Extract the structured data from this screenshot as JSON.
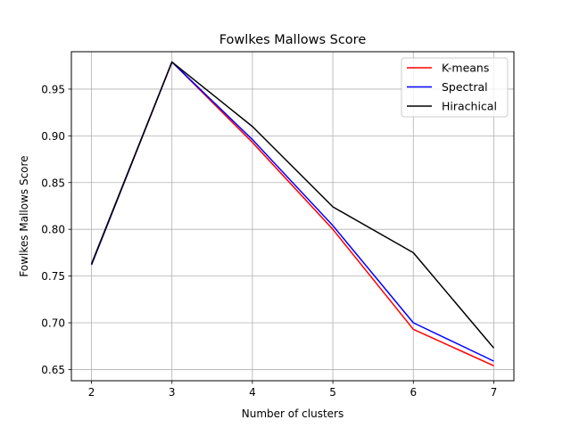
{
  "chart_data": {
    "type": "line",
    "title": "Fowlkes Mallows Score",
    "xlabel": "Number of clusters",
    "ylabel": "Fowlkes Mallows Score",
    "x": [
      2,
      3,
      4,
      5,
      6,
      7
    ],
    "xlim": [
      1.75,
      7.25
    ],
    "ylim": [
      0.638,
      0.99
    ],
    "xticks": [
      2,
      3,
      4,
      5,
      6,
      7
    ],
    "yticks": [
      0.65,
      0.7,
      0.75,
      0.8,
      0.85,
      0.9,
      0.95
    ],
    "grid": true,
    "legend_position": "top-right",
    "series": [
      {
        "name": "K-means",
        "color": "#ff0000",
        "values": [
          0.762,
          0.979,
          0.893,
          0.8,
          0.693,
          0.654
        ]
      },
      {
        "name": "Spectral",
        "color": "#0000ff",
        "values": [
          0.762,
          0.979,
          0.896,
          0.804,
          0.7,
          0.659
        ]
      },
      {
        "name": "Hirachical",
        "color": "#000000",
        "values": [
          0.763,
          0.979,
          0.91,
          0.824,
          0.775,
          0.673
        ]
      }
    ]
  }
}
